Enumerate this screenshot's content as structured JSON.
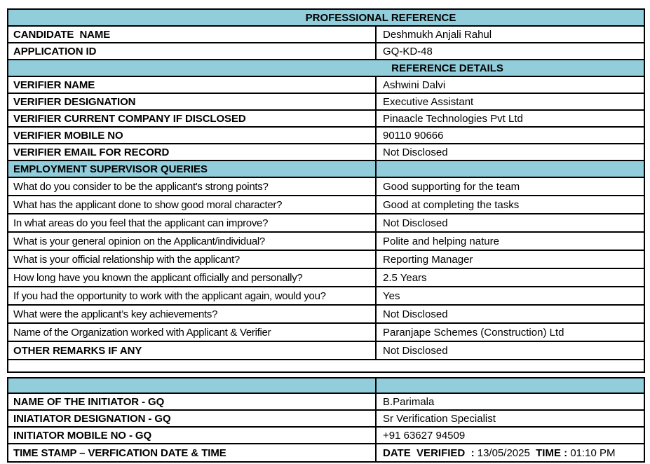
{
  "colors": {
    "header_bg": "#92CDDC",
    "border": "#000000",
    "text": "#000000"
  },
  "header": {
    "title": "PROFESSIONAL REFERENCE"
  },
  "candidate": {
    "rows": [
      {
        "label": "CANDIDATE  NAME",
        "value": "Deshmukh Anjali Rahul"
      },
      {
        "label": "APPLICATION ID",
        "value": "GQ-KD-48"
      }
    ]
  },
  "reference_details": {
    "title": "REFERENCE DETAILS",
    "rows": [
      {
        "label": "VERIFIER NAME",
        "value": "Ashwini Dalvi"
      },
      {
        "label": "VERIFIER DESIGNATION",
        "value": "Executive Assistant"
      },
      {
        "label": "VERIFIER CURRENT COMPANY IF DISCLOSED",
        "value": "Pinaacle Technologies Pvt Ltd"
      },
      {
        "label": "VERIFIER MOBILE NO",
        "value": "90110 90666"
      },
      {
        "label": "VERIFIER EMAIL FOR RECORD",
        "value": "Not Disclosed"
      }
    ]
  },
  "supervisor_queries": {
    "title": "EMPLOYMENT SUPERVISOR QUERIES",
    "rows": [
      {
        "question": "What do you consider to be the applicant's strong points?",
        "answer": "Good supporting for the team"
      },
      {
        "question": "What has the applicant done to show good moral character?",
        "answer": "Good at completing the tasks"
      },
      {
        "question": "In what areas do you feel that the applicant can improve?",
        "answer": "Not Disclosed"
      },
      {
        "question": "What is your general opinion on the Applicant/individual?",
        "answer": "Polite and helping nature"
      },
      {
        "question": "What is your official relationship with the applicant?",
        "answer": "Reporting Manager"
      },
      {
        "question": "How long have you known the applicant officially and personally?",
        "answer": "2.5 Years"
      },
      {
        "question": "If you had the opportunity to work with the applicant again, would you?",
        "answer": "Yes"
      },
      {
        "question": "What were the applicant’s key achievements?",
        "answer": "Not Disclosed"
      },
      {
        "question": "Name of the Organization worked with Applicant & Verifier",
        "answer": "Paranjape Schemes (Construction) Ltd"
      }
    ],
    "other_remarks": {
      "label": "OTHER REMARKS IF ANY",
      "value": "Not Disclosed"
    }
  },
  "initiator": {
    "rows": [
      {
        "label": "NAME OF THE INITIATOR - GQ",
        "value": "B.Parimala"
      },
      {
        "label": "INIATIATOR DESIGNATION - GQ",
        "value": "Sr Verification Specialist"
      },
      {
        "label": "INITIATOR MOBILE NO - GQ",
        "value": "+91 63627 94509"
      }
    ],
    "timestamp": {
      "label": "TIME STAMP – VERFICATION DATE & TIME",
      "date_label": "DATE  VERIFIED  : ",
      "date_value": "13/05/2025",
      "time_label": "  TIME : ",
      "time_value": "01:10 PM"
    }
  }
}
